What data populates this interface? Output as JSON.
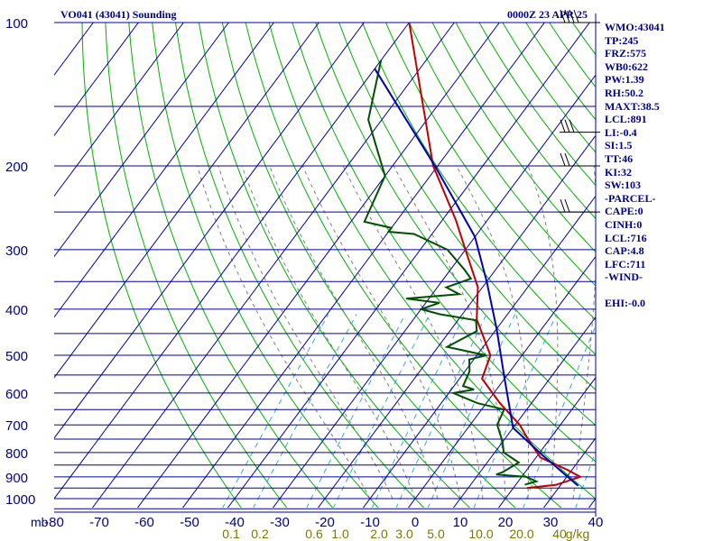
{
  "header": {
    "title": "VO041 (43041) Sounding",
    "time": "0000Z 23 APR 25"
  },
  "params": [
    "WMO:43041",
    "TP:245",
    "FRZ:575",
    "WB0:622",
    "PW:1.39",
    "RH:50.2",
    "MAXT:38.5",
    "LCL:891",
    "LI:-0.4",
    "SI:1.5",
    "TT:46",
    "KI:32",
    "SW:103",
    "-PARCEL-",
    "CAPE:0",
    "CINH:0",
    "LCL:716",
    "CAP:4.8",
    "LFC:711",
    "-WIND-",
    "",
    "EHI:-0.0"
  ],
  "colors": {
    "grid": "#0000a0",
    "dry_adiabat": "#00b000",
    "moist_adiabat": "#7f7f7f",
    "mixing_ratio": "#33aadd",
    "temperature": "#c00000",
    "dewpoint": "#005000",
    "parcel": "#0000b0",
    "axis_text": "#00008b",
    "mixing_text": "#7a7a00"
  },
  "chart_data": {
    "type": "line",
    "x_unit": "°C",
    "y_unit": "mb",
    "xlim": [
      -80,
      40
    ],
    "ylim": [
      1000,
      100
    ],
    "y_scale": "log",
    "x_ticks": [
      -80,
      -70,
      -60,
      -50,
      -40,
      -30,
      -20,
      -10,
      0,
      10,
      20,
      30,
      40
    ],
    "x_tick_labels": [
      "-80",
      "-70",
      "-60",
      "-50",
      "-40",
      "-30",
      "-20",
      "-10",
      "0",
      "10",
      "20",
      "30",
      "40"
    ],
    "y_ticks": [
      100,
      200,
      300,
      400,
      500,
      600,
      700,
      800,
      900,
      1000
    ],
    "y_tick_labels": [
      "100",
      "200",
      "300",
      "400",
      "500",
      "600",
      "700",
      "800",
      "900",
      "1000"
    ],
    "y_axis_unit_label": "mb",
    "mixing_ratio_labels": [
      "0.1",
      "0.2",
      "0.6",
      "1.0",
      "2.0",
      "3.0",
      "5.0",
      "10.0",
      "20.0",
      "40",
      "g/kg"
    ],
    "grid": true,
    "series": [
      {
        "key": "temperature",
        "points": [
          [
            -80,
            100
          ],
          [
            -51,
            200
          ],
          [
            -37,
            260
          ],
          [
            -30,
            300
          ],
          [
            -21,
            360
          ],
          [
            -16,
            420
          ],
          [
            -7,
            500
          ],
          [
            -5,
            560
          ],
          [
            3,
            630
          ],
          [
            11,
            700
          ],
          [
            16,
            760
          ],
          [
            21,
            820
          ],
          [
            29,
            870
          ],
          [
            33,
            900
          ],
          [
            29,
            935
          ],
          [
            23,
            950
          ]
        ]
      },
      {
        "key": "dewpoint",
        "points": [
          [
            -80,
            120
          ],
          [
            -73,
            160
          ],
          [
            -60,
            210
          ],
          [
            -57,
            262
          ],
          [
            -50,
            270
          ],
          [
            -50,
            275
          ],
          [
            -44,
            278
          ],
          [
            -34,
            300
          ],
          [
            -27,
            330
          ],
          [
            -24,
            345
          ],
          [
            -28,
            360
          ],
          [
            -24,
            372
          ],
          [
            -35,
            380
          ],
          [
            -27,
            388
          ],
          [
            -30,
            400
          ],
          [
            -25,
            410
          ],
          [
            -16,
            422
          ],
          [
            -14,
            445
          ],
          [
            -18,
            480
          ],
          [
            -8,
            500
          ],
          [
            -11,
            510
          ],
          [
            -9,
            540
          ],
          [
            -8,
            580
          ],
          [
            -5,
            590
          ],
          [
            -9,
            600
          ],
          [
            -2,
            630
          ],
          [
            5,
            650
          ],
          [
            6,
            700
          ],
          [
            10,
            760
          ],
          [
            12,
            800
          ],
          [
            17,
            840
          ],
          [
            15,
            880
          ],
          [
            14,
            890
          ],
          [
            21,
            900
          ],
          [
            24,
            920
          ],
          [
            22,
            935
          ]
        ]
      },
      {
        "key": "parcel",
        "points": [
          [
            -80,
            125
          ],
          [
            -50,
            202
          ],
          [
            -30,
            282
          ],
          [
            -20,
            350
          ],
          [
            -10,
            440
          ],
          [
            0,
            560
          ],
          [
            10,
            710
          ],
          [
            21,
            810
          ],
          [
            34,
            940
          ]
        ]
      }
    ]
  },
  "wind_barbs": [
    {
      "level": 100,
      "dir": 290,
      "speed": 40
    },
    {
      "level": 170,
      "dir": 300,
      "speed": 25
    },
    {
      "level": 200,
      "dir": 280,
      "speed": 15
    },
    {
      "level": 250,
      "dir": 270,
      "speed": 15
    }
  ]
}
